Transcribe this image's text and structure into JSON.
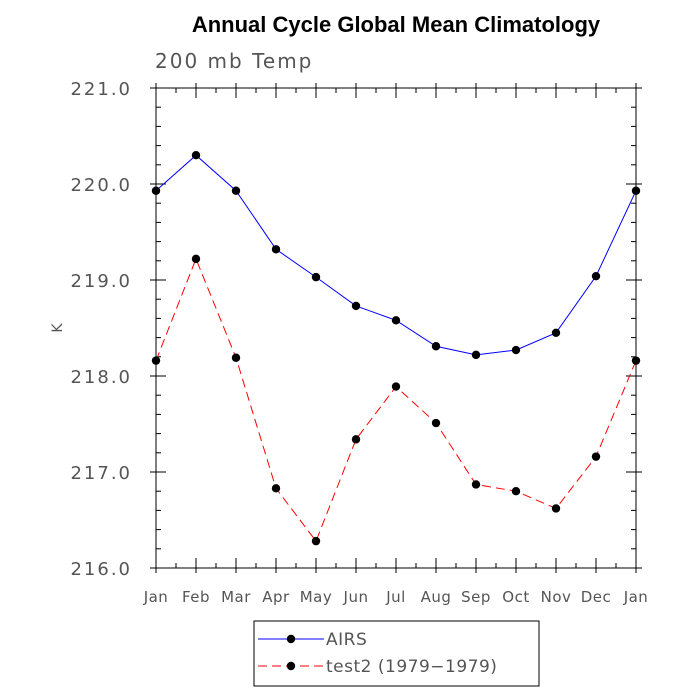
{
  "chart_data": {
    "type": "line",
    "title": "Annual Cycle Global Mean Climatology",
    "subtitle": "200 mb Temp",
    "xlabel": "",
    "ylabel": "K",
    "categories": [
      "Jan",
      "Feb",
      "Mar",
      "Apr",
      "May",
      "Jun",
      "Jul",
      "Aug",
      "Sep",
      "Oct",
      "Nov",
      "Dec",
      "Jan"
    ],
    "ylim": [
      216.0,
      221.0
    ],
    "yticks": [
      216.0,
      217.0,
      218.0,
      219.0,
      220.0,
      221.0
    ],
    "ytick_labels": [
      "216.0",
      "217.0",
      "218.0",
      "219.0",
      "220.0",
      "221.0"
    ],
    "grid": false,
    "legend_position": "bottom",
    "series": [
      {
        "name": "AIRS",
        "color": "#0000ff",
        "line_style": "solid",
        "marker": "filled-circle",
        "values": [
          219.93,
          220.3,
          219.93,
          219.32,
          219.03,
          218.73,
          218.58,
          218.31,
          218.22,
          218.27,
          218.45,
          219.04,
          219.93
        ]
      },
      {
        "name": "test2 (1979−1979)",
        "color": "#ff0000",
        "line_style": "dashed",
        "marker": "filled-circle",
        "values": [
          218.16,
          219.22,
          218.19,
          216.83,
          216.28,
          217.34,
          217.89,
          217.51,
          216.87,
          216.8,
          216.62,
          217.16,
          218.16
        ]
      }
    ]
  }
}
